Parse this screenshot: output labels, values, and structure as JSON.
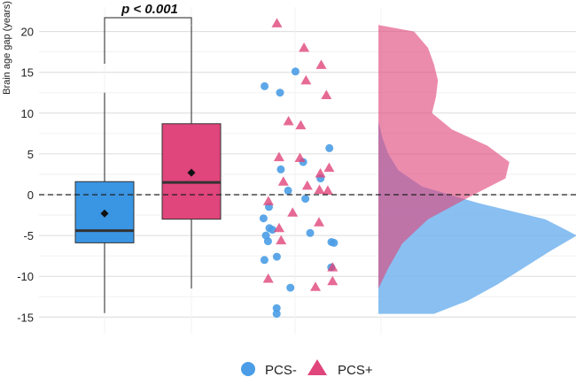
{
  "chart_data": {
    "type": "raincloud",
    "ylabel": "Brain age gap (years)",
    "ylim": [
      -16.5,
      23.5
    ],
    "yticks": [
      -15,
      -10,
      -5,
      0,
      5,
      10,
      15,
      20
    ],
    "ytick_labels": [
      "-15",
      "-10",
      "-5",
      "0",
      "5",
      "10",
      "15",
      "20"
    ],
    "reference_line": 0,
    "annotation": "p < 0.001",
    "legend": [
      {
        "name": "PCS-",
        "color": "#4a9de6",
        "marker": "circle"
      },
      {
        "name": "PCS+",
        "color": "#e0457b",
        "marker": "triangle"
      }
    ],
    "series": [
      {
        "name": "PCS-",
        "color": "#3a95e3",
        "box": {
          "min": -14.5,
          "q1": -5.9,
          "median": -4.4,
          "q3": 1.6,
          "max": 12.5,
          "mean": -2.3,
          "whisker_cap": 16.1
        },
        "points": [
          15.1,
          13.3,
          12.5,
          5.7,
          4.0,
          3.1,
          2.0,
          0.5,
          -0.5,
          -1.5,
          -2.9,
          -4.1,
          -4.3,
          -4.7,
          -5.0,
          -5.7,
          -5.8,
          -5.9,
          -7.6,
          -8.0,
          -8.9,
          -11.4,
          -13.9,
          -14.6
        ],
        "density": [
          [
            -14.6,
            0.28
          ],
          [
            -13,
            0.45
          ],
          [
            -11,
            0.6
          ],
          [
            -9,
            0.73
          ],
          [
            -7,
            0.86
          ],
          [
            -5,
            1.0
          ],
          [
            -3,
            0.84
          ],
          [
            -1,
            0.5
          ],
          [
            1,
            0.22
          ],
          [
            3,
            0.1
          ],
          [
            5,
            0.05
          ],
          [
            7,
            0.02
          ],
          [
            9,
            0.0
          ]
        ]
      },
      {
        "name": "PCS+",
        "color": "#e0457b",
        "box": {
          "min": -11.5,
          "q1": -3.0,
          "median": 1.5,
          "q3": 8.7,
          "max": 20.8,
          "mean": 2.7
        },
        "points": [
          21.0,
          18.0,
          15.9,
          14.0,
          12.2,
          9.0,
          8.5,
          4.6,
          4.5,
          3.3,
          2.6,
          1.6,
          1.1,
          0.6,
          0.5,
          -0.8,
          -2.2,
          -3.4,
          -4.1,
          -5.6,
          -8.9,
          -10.3,
          -10.6,
          -11.3
        ],
        "density": [
          [
            -11.5,
            0.0
          ],
          [
            -9,
            0.05
          ],
          [
            -6,
            0.12
          ],
          [
            -3,
            0.25
          ],
          [
            0,
            0.48
          ],
          [
            2,
            0.64
          ],
          [
            4,
            0.66
          ],
          [
            6,
            0.55
          ],
          [
            8,
            0.37
          ],
          [
            10,
            0.27
          ],
          [
            12,
            0.29
          ],
          [
            14,
            0.3
          ],
          [
            16,
            0.28
          ],
          [
            18,
            0.25
          ],
          [
            20,
            0.18
          ],
          [
            20.8,
            0.0
          ]
        ]
      }
    ]
  }
}
